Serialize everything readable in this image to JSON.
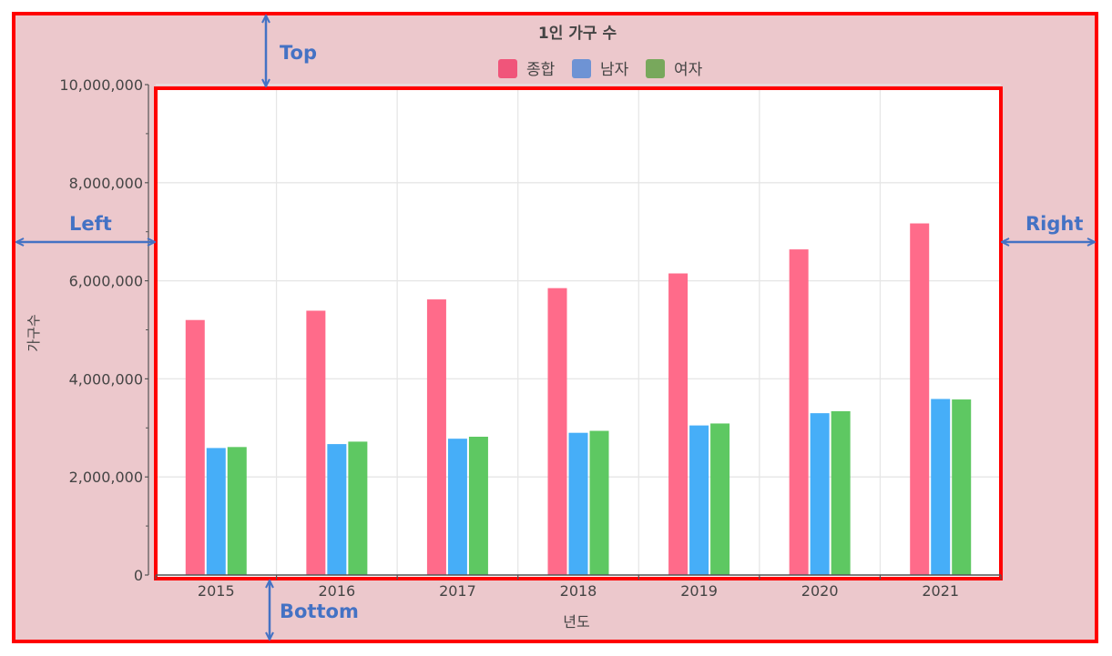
{
  "colors": {
    "outer_background": "#ecc8cc",
    "frame_red": "#ff0000",
    "plot_background": "#ffffff",
    "annotation_blue": "#4472c4",
    "legend_total": "#f0557a",
    "legend_male": "#6e93d4",
    "legend_female": "#78a85c",
    "bar_total": "#ff6b8a",
    "bar_male": "#46aef8",
    "bar_female": "#5ec862"
  },
  "annotations": {
    "top": "Top",
    "left": "Left",
    "right": "Right",
    "bottom": "Bottom"
  },
  "chart_data": {
    "type": "bar",
    "title": "1인 가구 수",
    "xlabel": "년도",
    "ylabel": "가구수",
    "categories": [
      "2015",
      "2016",
      "2017",
      "2018",
      "2019",
      "2020",
      "2021"
    ],
    "series": [
      {
        "name": "종합",
        "values": [
          5200000,
          5390000,
          5620000,
          5850000,
          6150000,
          6640000,
          7170000
        ]
      },
      {
        "name": "남자",
        "values": [
          2590000,
          2670000,
          2780000,
          2900000,
          3050000,
          3300000,
          3590000
        ]
      },
      {
        "name": "여자",
        "values": [
          2610000,
          2720000,
          2820000,
          2940000,
          3090000,
          3340000,
          3580000
        ]
      }
    ],
    "ylim": [
      0,
      10000000
    ],
    "yticks": [
      0,
      2000000,
      4000000,
      6000000,
      8000000,
      10000000
    ],
    "ytick_labels": [
      "0",
      "2,000,000",
      "4,000,000",
      "6,000,000",
      "8,000,000",
      "10,000,000"
    ],
    "grid": true,
    "legend_position": "top-center"
  }
}
